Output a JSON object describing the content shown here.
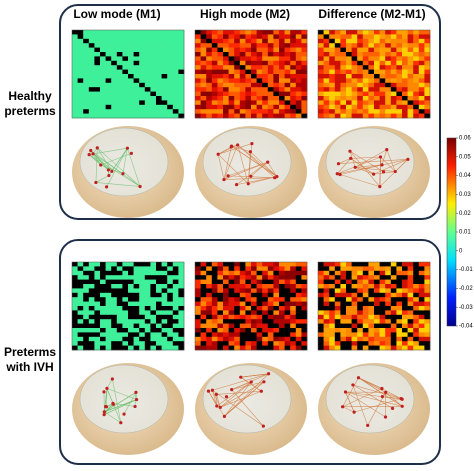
{
  "columns": [
    "Low mode (M1)",
    "High mode (M2)",
    "Difference (M2-M1)"
  ],
  "rows": [
    {
      "label_lines": [
        "Healthy",
        "preterms"
      ]
    },
    {
      "label_lines": [
        "Preterms",
        "with IVH"
      ]
    }
  ],
  "colorbar": {
    "lim": [
      -0.04,
      0.06
    ],
    "ticks": [
      0.06,
      0.05,
      0.04,
      0.03,
      0.02,
      0.01,
      0,
      -0.01,
      -0.02,
      -0.03,
      -0.04
    ]
  }
}
